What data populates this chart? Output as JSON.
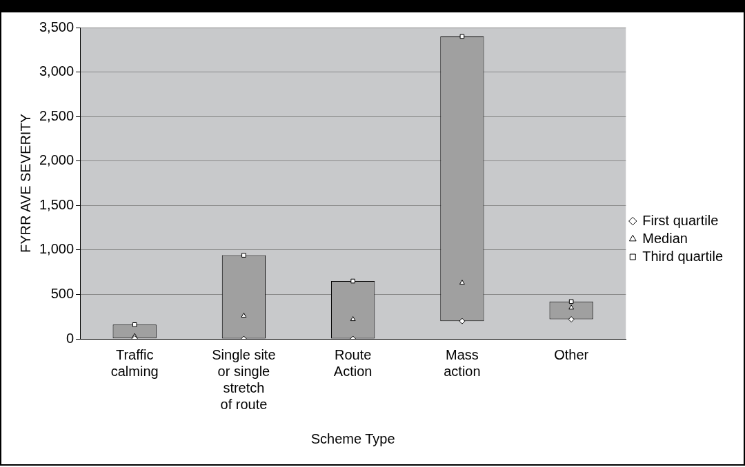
{
  "chart_data": {
    "type": "bar",
    "xlabel": "Scheme Type",
    "ylabel": "FYRR AVE SEVERITY",
    "categories": [
      "Traffic\ncalming",
      "Single site\nor single\nstretch\nof route",
      "Route\nAction",
      "Mass\naction",
      "Other"
    ],
    "series": [
      {
        "type": "bar",
        "color": "#a0a0a0",
        "base": [
          5,
          0,
          0,
          200,
          220
        ],
        "values": [
          155,
          940,
          650,
          3200,
          200
        ]
      },
      {
        "type": "scatter",
        "name": "First quartile",
        "color": "#ffffff",
        "marker": "diamond",
        "x": [
          "Traffic\ncalming",
          "Single site\nor single\nstretch\nof route",
          "Route\nAction",
          "Mass\naction",
          "Other"
        ],
        "values": [
          5,
          0,
          0,
          200,
          220
        ]
      },
      {
        "type": "scatter",
        "name": "Median",
        "color": "#ffffff",
        "marker": "triangle",
        "x": [
          "Traffic\ncalming",
          "Single site\nor single\nstretch\nof route",
          "Route\nAction",
          "Mass\naction",
          "Other"
        ],
        "values": [
          30,
          260,
          220,
          630,
          350
        ]
      },
      {
        "type": "scatter",
        "name": "Third quartile",
        "color": "#ffffff",
        "marker": "square",
        "x": [
          "Traffic\ncalming",
          "Single site\nor single\nstretch\nof route",
          "Route\nAction",
          "Mass\naction",
          "Other"
        ],
        "values": [
          160,
          940,
          650,
          3400,
          420
        ]
      }
    ],
    "ylim": [
      0,
      3500
    ],
    "yticks": [
      {
        "value": 0,
        "label": "0"
      },
      {
        "value": 500,
        "label": "500"
      },
      {
        "value": 1000,
        "label": "1,000"
      },
      {
        "value": 1500,
        "label": "1,500"
      },
      {
        "value": 2000,
        "label": "2,000"
      },
      {
        "value": 2500,
        "label": "2,500"
      },
      {
        "value": 3000,
        "label": "3,000"
      },
      {
        "value": 3500,
        "label": "3,500"
      }
    ],
    "grid": "y",
    "legend": "right"
  }
}
